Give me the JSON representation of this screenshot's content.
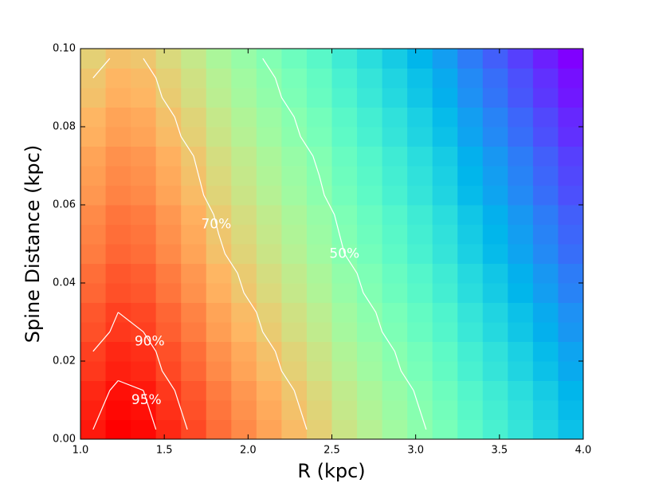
{
  "chart_data": {
    "type": "heatmap",
    "xlabel": "R (kpc)",
    "ylabel": "Spine Distance (kpc)",
    "xlim": [
      1,
      4
    ],
    "ylim": [
      0,
      0.1
    ],
    "xticks": [
      {
        "value": 1,
        "label": "1.0"
      },
      1.5,
      {
        "value": 2,
        "label": "2.0"
      },
      2.5,
      {
        "value": 3,
        "label": "3.0"
      },
      3.5,
      {
        "value": 4,
        "label": "4.0"
      }
    ],
    "yticks": [
      {
        "value": 0,
        "label": "0.00"
      },
      {
        "value": 0.02,
        "label": "0.02"
      },
      {
        "value": 0.04,
        "label": "0.04"
      },
      {
        "value": 0.06,
        "label": "0.06"
      },
      {
        "value": 0.08,
        "label": "0.08"
      },
      {
        "value": 0.1,
        "label": "0.10"
      }
    ],
    "colormap": "rainbow",
    "contour_color": "#ffffff",
    "contours": [
      {
        "value": 50,
        "label": "50%"
      },
      {
        "value": 70,
        "label": "70%"
      },
      {
        "value": 90,
        "label": "90%"
      },
      {
        "value": 95,
        "label": "95%"
      }
    ],
    "z": [
      [
        95,
        98,
        97,
        93,
        89,
        84,
        80,
        76,
        72,
        68,
        63,
        59,
        55,
        51,
        47,
        42,
        38,
        34,
        30,
        26
      ],
      [
        94,
        97,
        96,
        92,
        88,
        83,
        79,
        75,
        71,
        67,
        62,
        58,
        54,
        50,
        46,
        41,
        37,
        33,
        29,
        25
      ],
      [
        93,
        96,
        95,
        91,
        87,
        82,
        78,
        74,
        70,
        66,
        61,
        57,
        53,
        49,
        45,
        40,
        36,
        32,
        28,
        24
      ],
      [
        91,
        94,
        93,
        89,
        85,
        80,
        76,
        72,
        68,
        64,
        59,
        55,
        51,
        47,
        43,
        38,
        34,
        30,
        26,
        22
      ],
      [
        90,
        93,
        92,
        88,
        84,
        79,
        75,
        71,
        67,
        63,
        58,
        54,
        50,
        46,
        42,
        37,
        33,
        29,
        25,
        21
      ],
      [
        88,
        91,
        90,
        86,
        82,
        77,
        73,
        69,
        65,
        61,
        56,
        52,
        48,
        44,
        40,
        35,
        31,
        27,
        23,
        19
      ],
      [
        87,
        90,
        89,
        85,
        81,
        76,
        72,
        68,
        64,
        60,
        55,
        51,
        47,
        43,
        39,
        34,
        30,
        26,
        22,
        18
      ],
      [
        85,
        88,
        87,
        83,
        79,
        74,
        70,
        66,
        62,
        58,
        53,
        49,
        45,
        41,
        37,
        32,
        28,
        24,
        20,
        16
      ],
      [
        84,
        87,
        86,
        82,
        78,
        73,
        69,
        65,
        61,
        57,
        52,
        48,
        44,
        40,
        36,
        31,
        27,
        23,
        19,
        15
      ],
      [
        82,
        85,
        84,
        80,
        76,
        71,
        67,
        63,
        59,
        55,
        50,
        46,
        42,
        38,
        34,
        29,
        25,
        21,
        17,
        13
      ],
      [
        81,
        84,
        83,
        79,
        75,
        70,
        66,
        62,
        58,
        54,
        49,
        45,
        41,
        37,
        33,
        28,
        24,
        20,
        16,
        12
      ],
      [
        80,
        83,
        82,
        78,
        74,
        69,
        65,
        61,
        57,
        53,
        48,
        44,
        40,
        36,
        32,
        27,
        23,
        19,
        15,
        11
      ],
      [
        78,
        81,
        80,
        76,
        72,
        67,
        63,
        59,
        55,
        51,
        46,
        42,
        38,
        34,
        30,
        25,
        21,
        17,
        13,
        9
      ],
      [
        77,
        80,
        79,
        75,
        71,
        66,
        62,
        58,
        54,
        50,
        45,
        41,
        37,
        33,
        29,
        24,
        20,
        16,
        12,
        8
      ],
      [
        76,
        79,
        78,
        74,
        70,
        65,
        61,
        57,
        53,
        49,
        44,
        40,
        36,
        32,
        28,
        23,
        19,
        15,
        11,
        7
      ],
      [
        74,
        77,
        76,
        72,
        68,
        63,
        59,
        55,
        51,
        47,
        42,
        38,
        34,
        30,
        26,
        21,
        17,
        13,
        9,
        5
      ],
      [
        73,
        76,
        75,
        71,
        67,
        62,
        58,
        54,
        50,
        46,
        41,
        37,
        33,
        29,
        25,
        20,
        16,
        12,
        8,
        4
      ],
      [
        71,
        74,
        73,
        69,
        65,
        60,
        56,
        52,
        48,
        44,
        39,
        35,
        31,
        27,
        23,
        18,
        14,
        10,
        6,
        2
      ],
      [
        70,
        73,
        72,
        68,
        64,
        59,
        55,
        51,
        47,
        43,
        38,
        34,
        30,
        26,
        22,
        17,
        13,
        9,
        5,
        1
      ],
      [
        68,
        71,
        70,
        66,
        62,
        57,
        53,
        49,
        45,
        41,
        36,
        32,
        28,
        24,
        20,
        15,
        11,
        7,
        3,
        -1
      ]
    ]
  }
}
